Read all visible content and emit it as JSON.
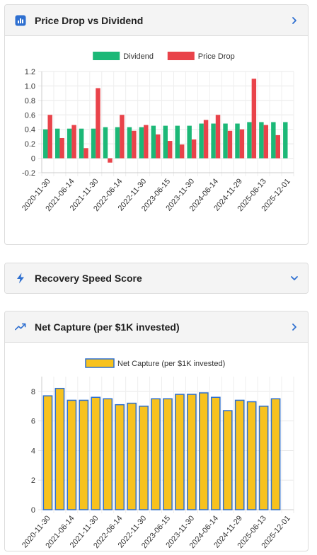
{
  "colors": {
    "dividend": "#1cb877",
    "price_drop": "#e9434a",
    "net_capture_fill": "#f7c21e",
    "net_capture_border": "#2e6fd0",
    "accent": "#2e6fd0"
  },
  "panels": [
    {
      "title": "Price Drop vs Dividend",
      "icon": "bar-chart-icon",
      "state": "expanded",
      "chevron": "chevron-right-icon"
    },
    {
      "title": "Recovery Speed Score",
      "icon": "lightning-bolt-icon",
      "state": "collapsed",
      "chevron": "chevron-down-icon"
    },
    {
      "title": "Net Capture (per $1K invested)",
      "icon": "trending-up-icon",
      "state": "expanded",
      "chevron": "chevron-right-icon"
    }
  ],
  "chart_data": [
    {
      "type": "bar",
      "legend": [
        "Dividend",
        "Price Drop"
      ],
      "legend_position": "top",
      "grid": true,
      "ylim": [
        -0.2,
        1.2
      ],
      "yticks": [
        -0.2,
        0,
        0.2,
        0.4,
        0.6,
        0.8,
        1.0,
        1.2
      ],
      "ytick_labels": [
        "-0.2",
        "0",
        "0.2",
        "0.4",
        "0.6",
        "0.8",
        "1.0",
        "1.2"
      ],
      "x_tick_labels": [
        "2020-11-30",
        "2021-06-14",
        "2021-11-30",
        "2022-06-14",
        "2022-11-30",
        "2023-06-15",
        "2023-11-30",
        "2024-06-14",
        "2024-11-29",
        "2025-06-13",
        "2025-12-01"
      ],
      "categories": [
        "2020-11-30",
        "2021-03-15",
        "2021-06-14",
        "2021-09-14",
        "2021-11-30",
        "2022-03-15",
        "2022-06-14",
        "2022-09-14",
        "2022-11-30",
        "2023-03-15",
        "2023-06-15",
        "2023-09-14",
        "2023-11-30",
        "2024-03-15",
        "2024-06-14",
        "2024-09-13",
        "2024-11-29",
        "2025-03-14",
        "2025-06-13",
        "2025-09-12",
        "2025-12-01"
      ],
      "series": [
        {
          "name": "Dividend",
          "values": [
            0.4,
            0.41,
            0.41,
            0.41,
            0.41,
            0.43,
            0.43,
            0.43,
            0.43,
            0.45,
            0.45,
            0.45,
            0.45,
            0.48,
            0.48,
            0.48,
            0.48,
            0.5,
            0.5,
            0.5,
            0.5
          ]
        },
        {
          "name": "Price Drop",
          "values": [
            0.6,
            0.28,
            0.46,
            0.14,
            0.97,
            -0.06,
            0.6,
            0.38,
            0.46,
            0.33,
            0.24,
            0.19,
            0.26,
            0.53,
            0.6,
            0.38,
            0.4,
            1.1,
            0.46,
            0.32,
            null
          ]
        }
      ]
    },
    {
      "type": "bar",
      "legend": [
        "Net Capture (per $1K invested)"
      ],
      "legend_position": "top",
      "grid": true,
      "ylim": [
        0,
        9
      ],
      "yticks": [
        0,
        2,
        4,
        6,
        8
      ],
      "ytick_labels": [
        "0",
        "2",
        "4",
        "6",
        "8"
      ],
      "x_tick_labels": [
        "2020-11-30",
        "2021-06-14",
        "2021-11-30",
        "2022-06-14",
        "2022-11-30",
        "2023-06-15",
        "2023-11-30",
        "2024-06-14",
        "2024-11-29",
        "2025-06-13",
        "2025-12-01"
      ],
      "categories": [
        "2020-11-30",
        "2021-03-15",
        "2021-06-14",
        "2021-09-14",
        "2021-11-30",
        "2022-03-15",
        "2022-06-14",
        "2022-09-14",
        "2022-11-30",
        "2023-03-15",
        "2023-06-15",
        "2023-09-14",
        "2023-11-30",
        "2024-03-15",
        "2024-06-14",
        "2024-09-13",
        "2024-11-29",
        "2025-03-14",
        "2025-06-13",
        "2025-09-12",
        "2025-12-01"
      ],
      "series": [
        {
          "name": "Net Capture (per $1K invested)",
          "values": [
            7.7,
            8.2,
            7.4,
            7.4,
            7.6,
            7.5,
            7.1,
            7.2,
            7.0,
            7.5,
            7.5,
            7.8,
            7.8,
            7.9,
            7.6,
            6.7,
            7.4,
            7.3,
            7.0,
            7.5,
            null
          ]
        }
      ]
    }
  ]
}
